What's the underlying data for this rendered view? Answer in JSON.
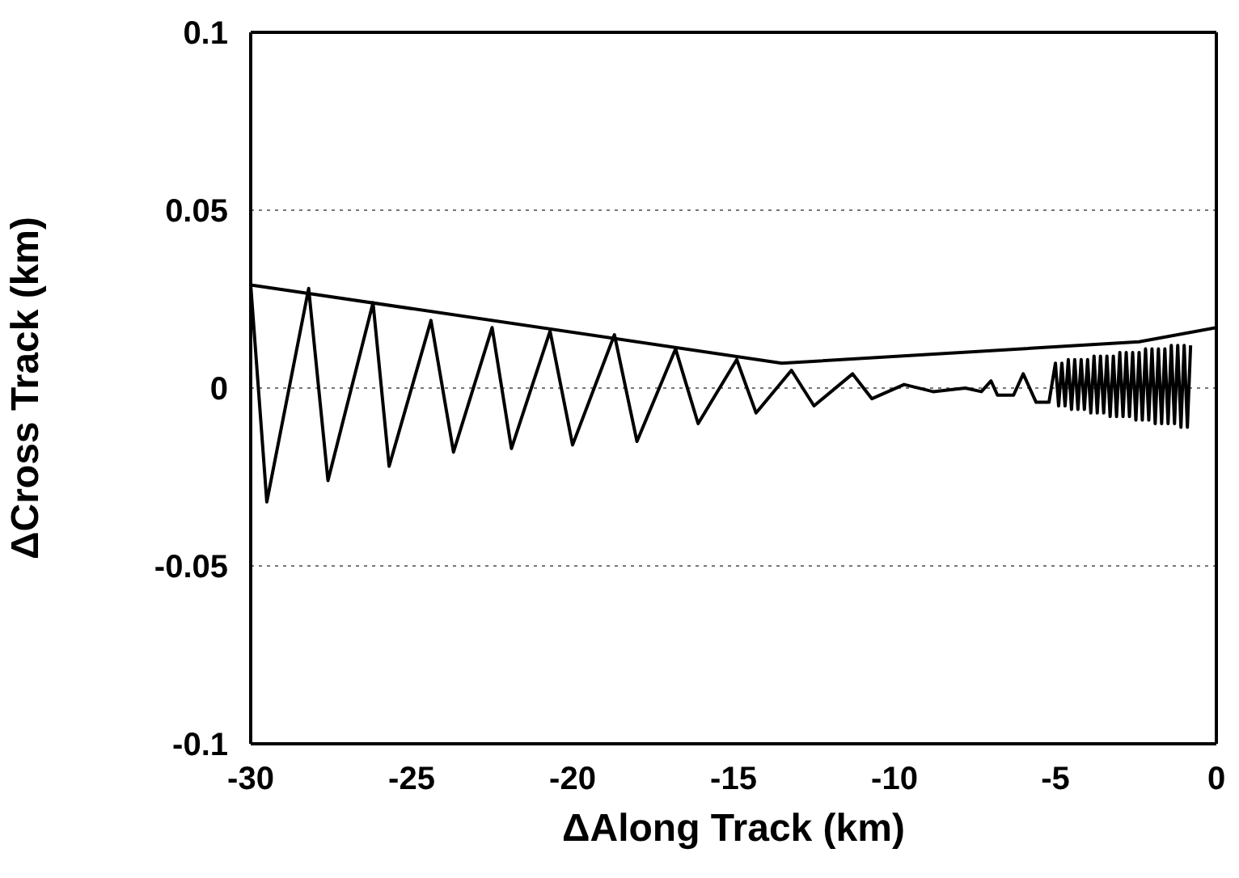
{
  "chart_data": {
    "type": "line",
    "xlabel": "ΔAlong Track (km)",
    "ylabel": "ΔCross Track (km)",
    "xlim": [
      -30,
      0
    ],
    "xticks": [
      -30,
      -25,
      -20,
      -15,
      -10,
      -5,
      0
    ],
    "ylim": [
      -0.1,
      0.1
    ],
    "yticks": [
      -0.1,
      -0.05,
      0,
      0.05,
      0.1
    ],
    "grid": "y",
    "marker": "none",
    "line_style": "solid",
    "series": [
      {
        "color": "#000000",
        "x": [
          -30,
          -13.5,
          -2.4,
          0
        ],
        "values": [
          0.029,
          0.007,
          0.013,
          0.017
        ]
      },
      {
        "color": "#000000",
        "x": [
          -30,
          -29.5,
          -28.2,
          -27.6,
          -26.2,
          -25.7,
          -24.4,
          -23.7,
          -22.5,
          -21.9,
          -20.7,
          -20.0,
          -18.7,
          -18.0,
          -16.8,
          -16.1,
          -14.9,
          -14.3,
          -13.2,
          -12.5,
          -11.3,
          -10.7,
          -9.7,
          -8.8,
          -7.8,
          -7.3,
          -7.0,
          -6.8,
          -6.3,
          -6.0,
          -5.6,
          -5.2,
          -5.0,
          -4.9,
          -4.8,
          -4.7,
          -4.6,
          -4.5,
          -4.4,
          -4.3,
          -4.2,
          -4.1,
          -4.0,
          -3.9,
          -3.8,
          -3.7,
          -3.6,
          -3.5,
          -3.4,
          -3.3,
          -3.2,
          -3.1,
          -3.0,
          -2.9,
          -2.8,
          -2.7,
          -2.6,
          -2.5,
          -2.4,
          -2.3,
          -2.2,
          -2.1,
          -2.0,
          -1.9,
          -1.8,
          -1.7,
          -1.6,
          -1.5,
          -1.4,
          -1.3,
          -1.2,
          -1.1,
          -1.0,
          -0.9,
          -0.8
        ],
        "values": [
          0.029,
          -0.032,
          0.028,
          -0.026,
          0.024,
          -0.022,
          0.019,
          -0.018,
          0.017,
          -0.017,
          0.016,
          -0.016,
          0.015,
          -0.015,
          0.011,
          -0.01,
          0.008,
          -0.007,
          0.005,
          -0.005,
          0.004,
          -0.003,
          0.001,
          -0.001,
          0,
          -0.001,
          0.002,
          -0.002,
          -0.002,
          0.004,
          -0.004,
          -0.004,
          0.007,
          -0.005,
          0.007,
          -0.005,
          0.008,
          -0.006,
          0.008,
          -0.006,
          0.008,
          -0.006,
          0.008,
          -0.007,
          0.009,
          -0.007,
          0.009,
          -0.007,
          0.009,
          -0.008,
          0.009,
          -0.008,
          0.01,
          -0.008,
          0.01,
          -0.008,
          0.01,
          -0.009,
          0.01,
          -0.009,
          0.011,
          -0.009,
          0.011,
          -0.01,
          0.011,
          -0.01,
          0.011,
          -0.01,
          0.012,
          -0.01,
          0.012,
          -0.011,
          0.012,
          -0.011,
          0.012
        ]
      }
    ]
  }
}
